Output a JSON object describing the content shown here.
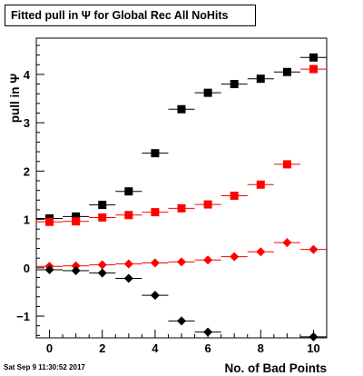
{
  "chart_data": {
    "type": "scatter",
    "title": "Fitted pull in Ψ  for Global Rec All NoHits",
    "xlabel": "No. of Bad Points",
    "ylabel": "pull in  Ψ",
    "xlim": [
      -0.5,
      10.5
    ],
    "ylim": [
      -1.45,
      4.75
    ],
    "x_ticks": [
      0,
      2,
      4,
      6,
      8,
      10
    ],
    "y_ticks": [
      -1,
      0,
      1,
      2,
      3,
      4
    ],
    "series": [
      {
        "marker": "square",
        "color": "#000000",
        "x": [
          0,
          1,
          2,
          3,
          4,
          5,
          6,
          7,
          8,
          9,
          10
        ],
        "y": [
          1.02,
          1.06,
          1.3,
          1.58,
          2.37,
          3.28,
          3.62,
          3.8,
          3.91,
          4.05,
          4.35
        ]
      },
      {
        "marker": "square",
        "color": "#ff0000",
        "x": [
          0,
          1,
          2,
          3,
          4,
          5,
          6,
          7,
          8,
          9,
          10
        ],
        "y": [
          0.95,
          0.96,
          1.04,
          1.09,
          1.15,
          1.23,
          1.31,
          1.49,
          1.72,
          2.14,
          4.11
        ]
      },
      {
        "marker": "diamond",
        "color": "#ff0000",
        "x": [
          0,
          1,
          2,
          3,
          4,
          5,
          6,
          7,
          8,
          9,
          10
        ],
        "y": [
          0.03,
          0.04,
          0.06,
          0.08,
          0.1,
          0.12,
          0.16,
          0.23,
          0.33,
          0.52,
          0.38
        ]
      },
      {
        "marker": "diamond",
        "color": "#000000",
        "x": [
          0,
          1,
          2,
          3,
          4,
          5,
          6,
          7,
          8,
          9,
          10
        ],
        "y": [
          -0.04,
          -0.06,
          -0.11,
          -0.22,
          -0.57,
          -1.1,
          -1.33,
          null,
          null,
          null,
          -1.43
        ]
      }
    ],
    "grid": false,
    "legend": "none"
  },
  "footer": {
    "timestamp": "Sat Sep  9 11:30:52 2017"
  }
}
